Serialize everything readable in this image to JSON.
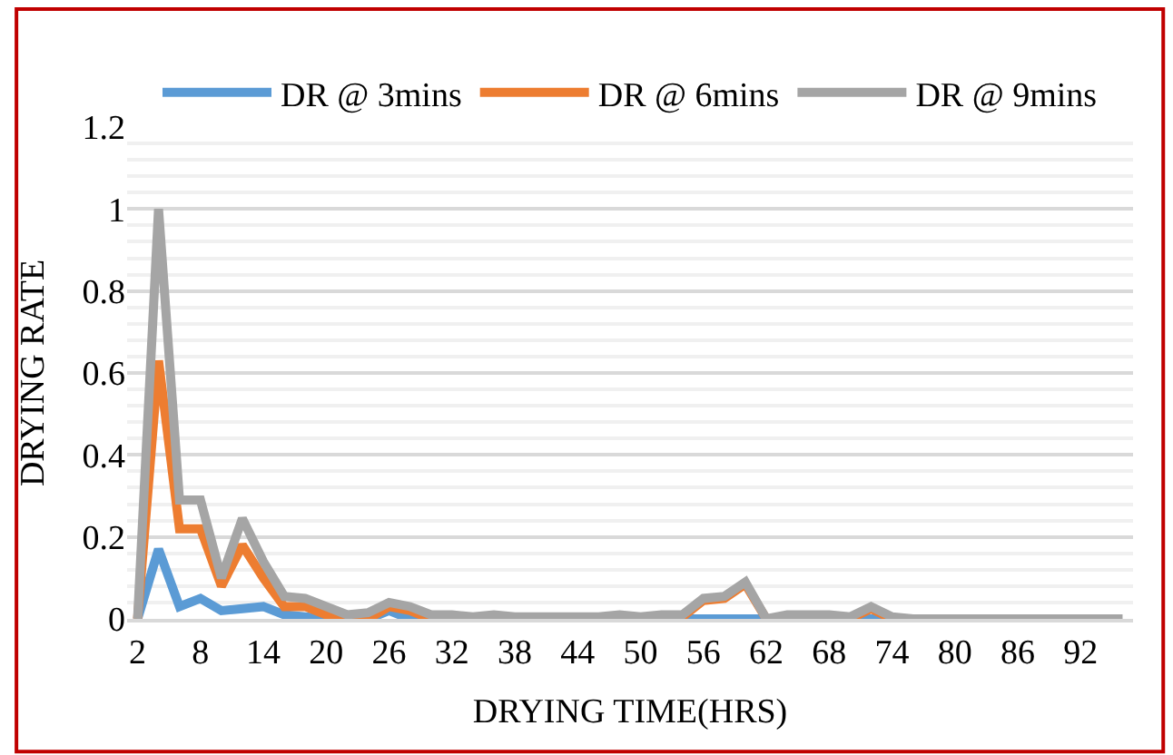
{
  "chart_data": {
    "type": "line",
    "xlabel": "DRYING TIME(HRS)",
    "ylabel": "DRYING RATE",
    "categories": [
      "2",
      null,
      null,
      "8",
      null,
      null,
      "14",
      null,
      null,
      "20",
      null,
      null,
      "26",
      null,
      null,
      "32",
      null,
      null,
      "38",
      null,
      null,
      "44",
      null,
      null,
      "50",
      null,
      null,
      "56",
      null,
      null,
      "62",
      null,
      null,
      "68",
      null,
      null,
      "74",
      null,
      null,
      "80",
      null,
      null,
      "86",
      null,
      null,
      "92",
      null,
      null
    ],
    "series": [
      {
        "name": "DR @ 3mins",
        "color": "#5b9bd5",
        "values": [
          0,
          0.17,
          0.03,
          0.05,
          0.02,
          0.025,
          0.03,
          0.01,
          0.005,
          0,
          null,
          0,
          0.02,
          0,
          0,
          null,
          null,
          null,
          null,
          null,
          null,
          null,
          null,
          null,
          null,
          null,
          0,
          0,
          0,
          0,
          0,
          null,
          null,
          null,
          0,
          0,
          0,
          null,
          null,
          null,
          null,
          null,
          null,
          null,
          null,
          null,
          null,
          null
        ]
      },
      {
        "name": "DR @ 6mins",
        "color": "#ed7d31",
        "values": [
          0,
          0.63,
          0.22,
          0.22,
          0.08,
          0.18,
          0.1,
          0.03,
          0.03,
          0.01,
          0,
          0,
          0.03,
          0.02,
          0,
          null,
          null,
          null,
          null,
          null,
          null,
          null,
          null,
          null,
          null,
          null,
          0.005,
          0.045,
          0.05,
          0.085,
          0,
          null,
          null,
          null,
          0,
          0.025,
          0,
          null,
          null,
          null,
          null,
          null,
          null,
          null,
          null,
          null,
          null,
          null
        ]
      },
      {
        "name": "DR @ 9mins",
        "color": "#a5a5a5",
        "values": [
          0,
          1.0,
          0.29,
          0.29,
          0.1,
          0.245,
          0.14,
          0.055,
          0.05,
          0.03,
          0.01,
          0.015,
          0.04,
          0.03,
          0.01,
          0.01,
          0.005,
          0.01,
          0.005,
          0.005,
          0.005,
          0.005,
          0.005,
          0.01,
          0.005,
          0.01,
          0.01,
          0.05,
          0.055,
          0.09,
          0,
          0.01,
          0.01,
          0.01,
          0.005,
          0.03,
          0.005,
          0,
          0,
          0,
          0,
          0,
          0,
          0,
          0,
          0,
          0,
          0
        ]
      }
    ],
    "ylim": [
      0,
      1.2
    ],
    "yticks": [
      0,
      {
        "value": 0.2,
        "label": "0.2"
      },
      {
        "value": 0.4,
        "label": "0.4"
      },
      {
        "value": 0.6,
        "label": "0.6"
      },
      {
        "value": 0.8,
        "label": "0.8"
      },
      1,
      {
        "value": 1.2,
        "label": "1.2"
      }
    ],
    "grid": "y",
    "legend": "top",
    "marker": "none",
    "line_style": "solid"
  }
}
